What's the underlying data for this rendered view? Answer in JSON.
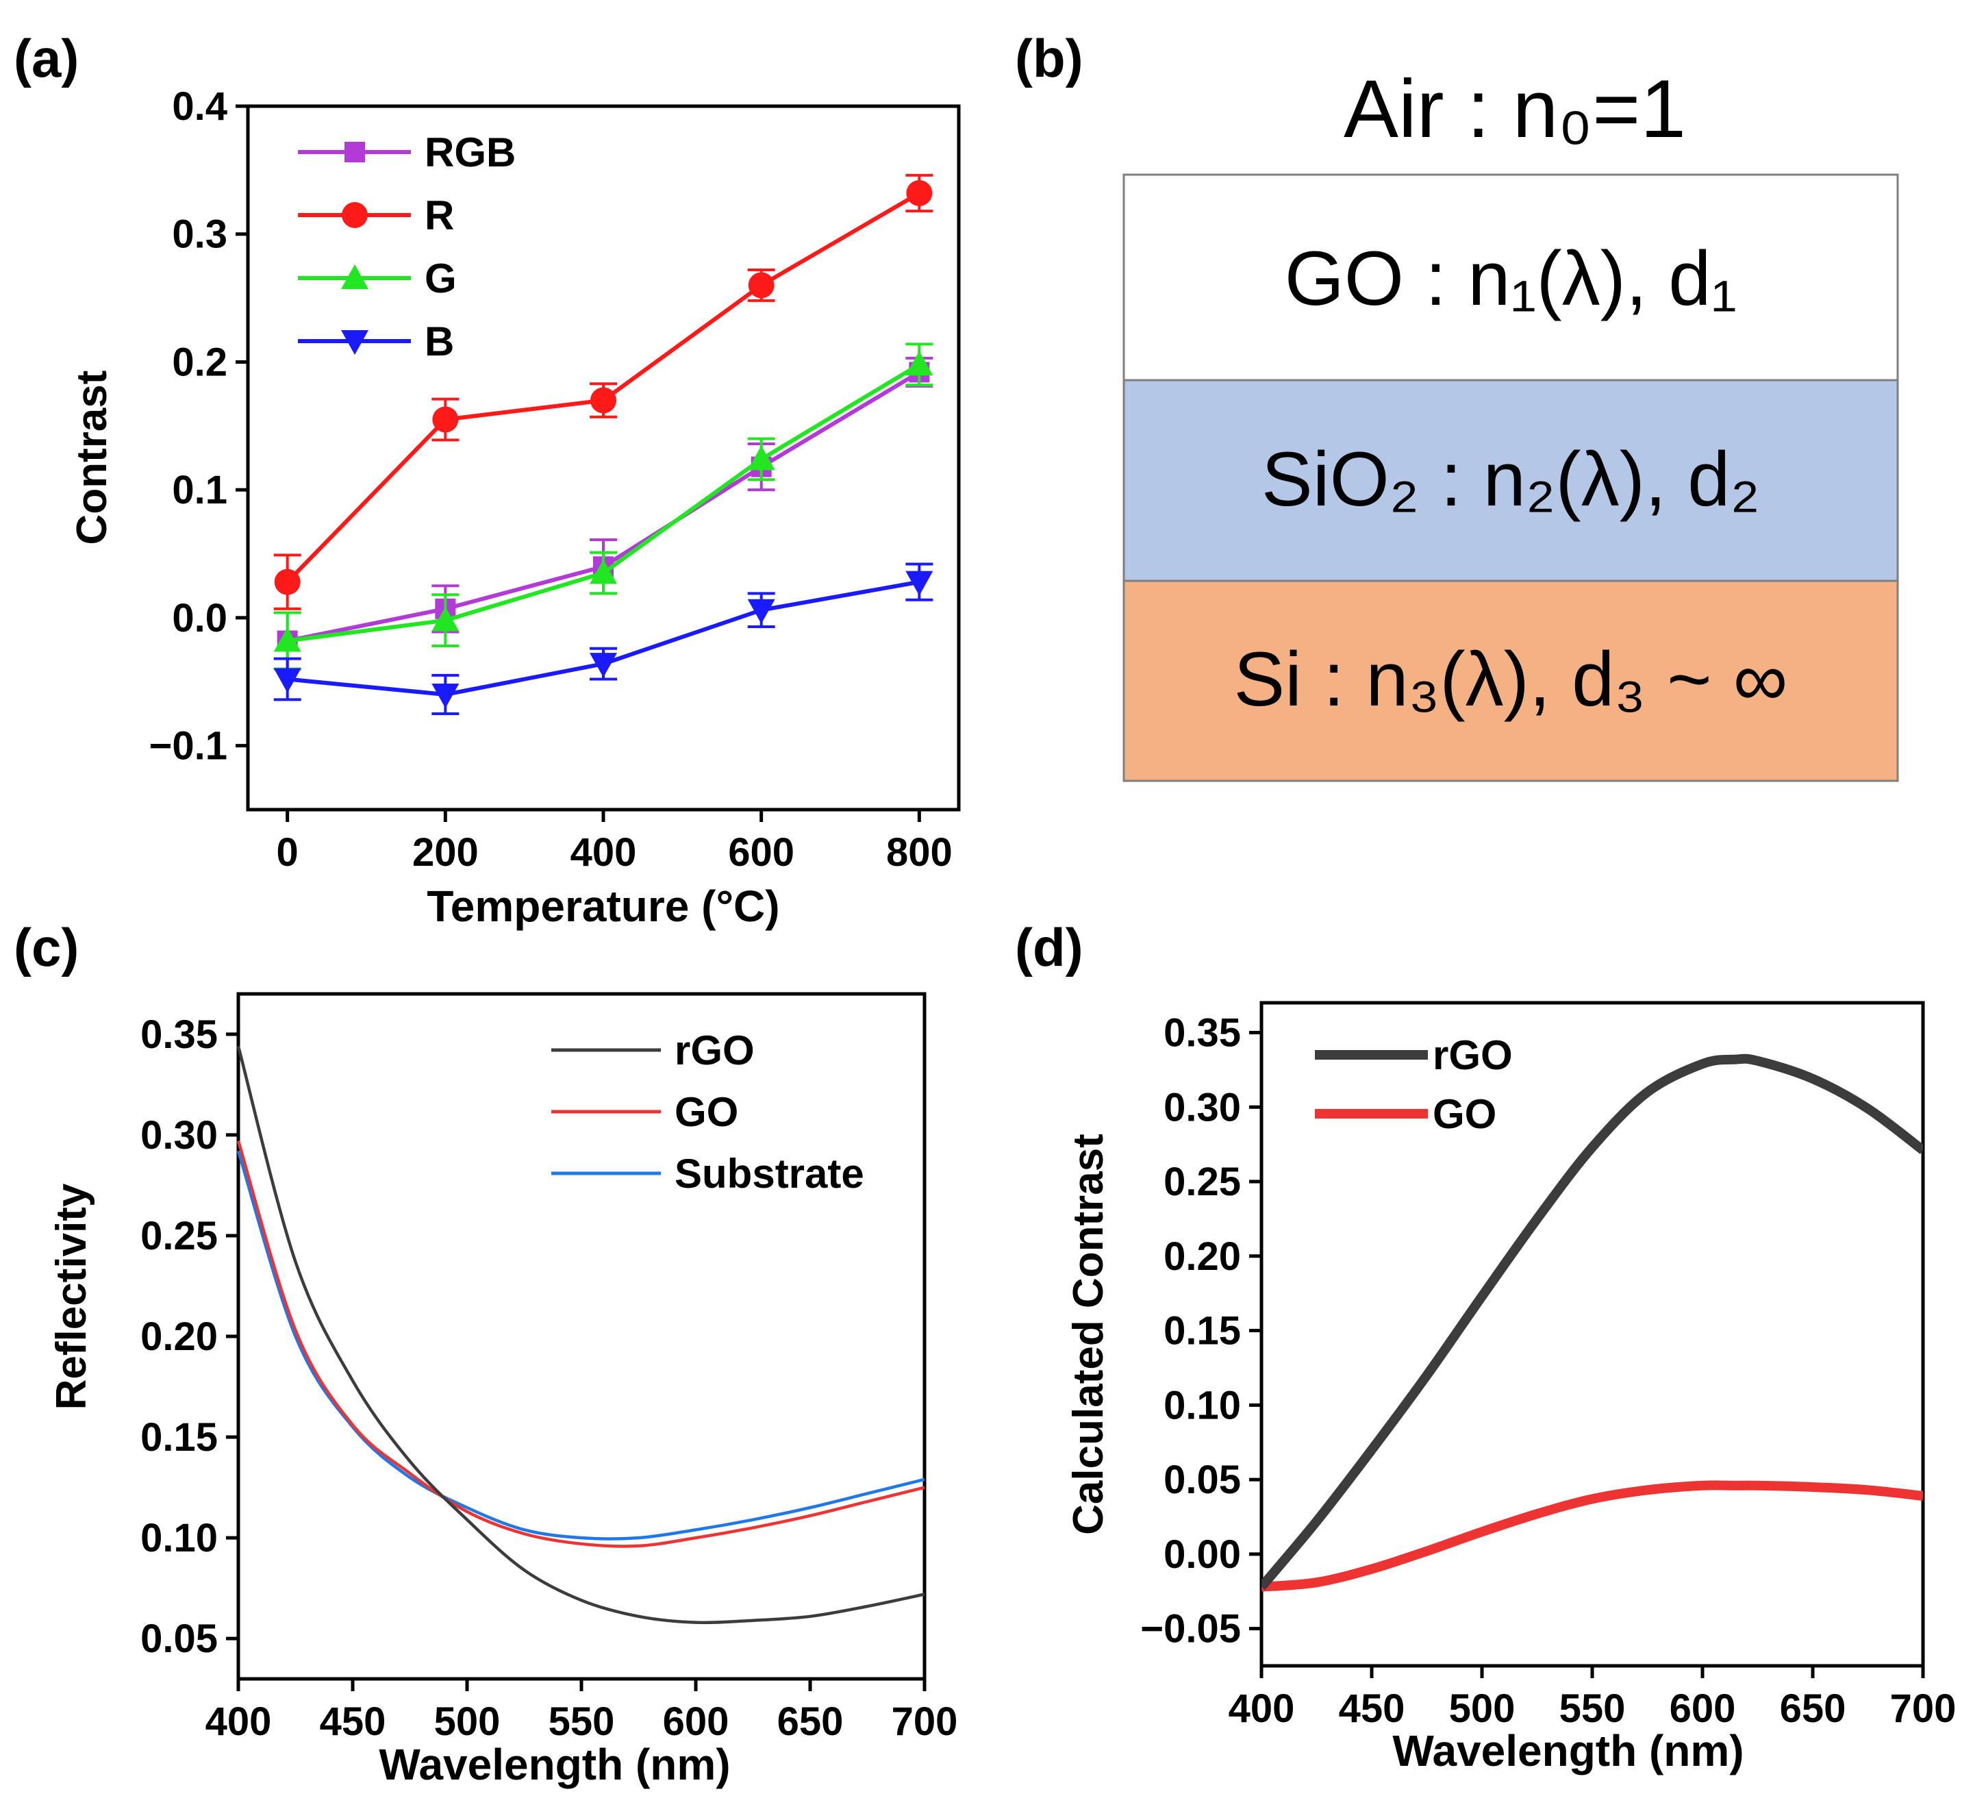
{
  "panels": {
    "a": {
      "label": "(a)",
      "chart_data": {
        "type": "line",
        "title": "",
        "xlabel": "Temperature (°C)",
        "ylabel": "Contrast",
        "x": [
          0,
          200,
          400,
          600,
          800
        ],
        "xlim": [
          -50,
          850
        ],
        "ylim": [
          -0.15,
          0.4
        ],
        "xticks": [
          0,
          200,
          400,
          600,
          800
        ],
        "xtick_labels": [
          "0",
          "200",
          "400",
          "600",
          "800"
        ],
        "yticks": [
          -0.1,
          0.0,
          0.1,
          0.2,
          0.3,
          0.4
        ],
        "ytick_labels": [
          "−0.1",
          "0.0",
          "0.1",
          "0.2",
          "0.3",
          "0.4"
        ],
        "legend_position": "top-left",
        "series": [
          {
            "name": "RGB",
            "color": "#b23ad6",
            "marker": "square",
            "values": [
              -0.018,
              0.007,
              0.04,
              0.118,
              0.192
            ],
            "errors": [
              0.022,
              0.018,
              0.021,
              0.018,
              0.011
            ]
          },
          {
            "name": "R",
            "color": "#ff1a1a",
            "marker": "circle",
            "values": [
              0.028,
              0.155,
              0.17,
              0.26,
              0.332
            ],
            "errors": [
              0.021,
              0.016,
              0.013,
              0.012,
              0.014
            ]
          },
          {
            "name": "G",
            "color": "#22e622",
            "marker": "triangle-up",
            "values": [
              -0.018,
              -0.002,
              0.035,
              0.124,
              0.198
            ],
            "errors": [
              0.022,
              0.02,
              0.016,
              0.016,
              0.016
            ]
          },
          {
            "name": "B",
            "color": "#1a1aff",
            "marker": "triangle-down",
            "values": [
              -0.048,
              -0.06,
              -0.036,
              0.006,
              0.028
            ],
            "errors": [
              0.016,
              0.015,
              0.012,
              0.013,
              0.014
            ]
          }
        ]
      }
    },
    "b": {
      "label": "(b)",
      "air_label": "Air : n₀=1",
      "layers": [
        {
          "name": "GO",
          "rest": " : n₁(λ), d₁",
          "color": "#ffffff"
        },
        {
          "name": "SiO₂",
          "rest": " : n₂(λ), d₂",
          "color": "#b4c7e7"
        },
        {
          "name": "Si",
          "rest": " : n₃(λ), d₃ ~ ∞",
          "color": "#f4b183"
        }
      ]
    },
    "c": {
      "label": "(c)",
      "chart_data": {
        "type": "line",
        "title": "",
        "xlabel": "Wavelength (nm)",
        "ylabel": "Reflectivity",
        "xlim": [
          400,
          700
        ],
        "ylim": [
          0.03,
          0.37
        ],
        "xticks": [
          400,
          450,
          500,
          550,
          600,
          650,
          700
        ],
        "xtick_labels": [
          "400",
          "450",
          "500",
          "550",
          "600",
          "650",
          "700"
        ],
        "yticks": [
          0.05,
          0.1,
          0.15,
          0.2,
          0.25,
          0.3,
          0.35
        ],
        "ytick_labels": [
          "0.05",
          "0.10",
          "0.15",
          "0.20",
          "0.25",
          "0.30",
          "0.35"
        ],
        "legend_position": "top-right",
        "x": [
          400,
          425,
          450,
          475,
          500,
          525,
          550,
          575,
          600,
          625,
          650,
          675,
          700
        ],
        "series": [
          {
            "name": "rGO",
            "color": "#3c3c3c",
            "values": [
              0.344,
              0.237,
              0.178,
              0.138,
              0.109,
              0.084,
              0.069,
              0.061,
              0.058,
              0.059,
              0.061,
              0.066,
              0.072
            ]
          },
          {
            "name": "GO",
            "color": "#ee3333",
            "values": [
              0.297,
              0.203,
              0.156,
              0.132,
              0.113,
              0.102,
              0.097,
              0.096,
              0.1,
              0.105,
              0.111,
              0.118,
              0.125
            ]
          },
          {
            "name": "Substrate",
            "color": "#1f77e8",
            "values": [
              0.292,
              0.2,
              0.155,
              0.13,
              0.115,
              0.104,
              0.1,
              0.1,
              0.104,
              0.109,
              0.115,
              0.122,
              0.129
            ]
          }
        ]
      }
    },
    "d": {
      "label": "(d)",
      "chart_data": {
        "type": "line",
        "title": "",
        "xlabel": "Wavelength (nm)",
        "ylabel": "Calculated Contrast",
        "xlim": [
          400,
          700
        ],
        "ylim": [
          -0.075,
          0.37
        ],
        "xticks": [
          400,
          450,
          500,
          550,
          600,
          650,
          700
        ],
        "xtick_labels": [
          "400",
          "450",
          "500",
          "550",
          "600",
          "650",
          "700"
        ],
        "yticks": [
          -0.05,
          0.0,
          0.05,
          0.1,
          0.15,
          0.2,
          0.25,
          0.3,
          0.35
        ],
        "ytick_labels": [
          "−0.05",
          "0.00",
          "0.05",
          "0.10",
          "0.15",
          "0.20",
          "0.25",
          "0.30",
          "0.35"
        ],
        "legend_position": "top-left",
        "x": [
          400,
          425,
          450,
          475,
          500,
          525,
          550,
          575,
          600,
          615,
          625,
          650,
          675,
          700
        ],
        "series": [
          {
            "name": "rGO",
            "color": "#3c3c3c",
            "values": [
              -0.022,
              0.022,
              0.07,
              0.12,
              0.173,
              0.225,
              0.273,
              0.31,
              0.329,
              0.332,
              0.331,
              0.319,
              0.299,
              0.271
            ]
          },
          {
            "name": "GO",
            "color": "#ee3333",
            "values": [
              -0.022,
              -0.019,
              -0.01,
              0.002,
              0.015,
              0.027,
              0.037,
              0.043,
              0.046,
              0.046,
              0.046,
              0.045,
              0.043,
              0.039
            ]
          }
        ]
      }
    }
  }
}
